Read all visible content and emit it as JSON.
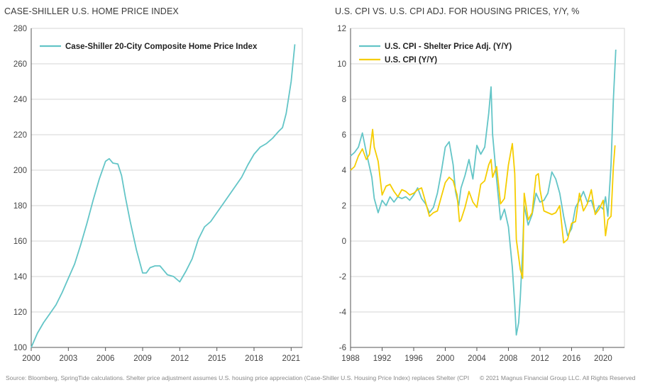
{
  "left_title": "CASE-SHILLER U.S. HOME PRICE INDEX",
  "right_title": "U.S. CPI VS. U.S. CPI ADJ. FOR HOUSING PRICES, Y/Y, %",
  "footer_source": "Source: Bloomberg, SpringTide calculations. Shelter price adjustment assumes U.S. housing price appreciation (Case-Shiller U.S. Housing Price Index) replaces Shelter (CPI",
  "footer_copyright": "© 2021 Magnus Financial Group LLC. All Rights Reserved",
  "colors": {
    "teal": "#63C5C7",
    "yellow": "#F5CD00",
    "grid": "#D4D4D4",
    "axis": "#555555"
  },
  "chart_data": [
    {
      "type": "line",
      "x_ticks": [
        2000,
        2003,
        2006,
        2009,
        2012,
        2015,
        2018,
        2021
      ],
      "y_ticks": [
        100,
        120,
        140,
        160,
        180,
        200,
        220,
        240,
        260,
        280
      ],
      "xlim": [
        2000,
        2021.9
      ],
      "ylim": [
        100,
        280
      ],
      "grid": "horizontal",
      "legend_position": "top-left",
      "series": [
        {
          "name": "Case-Shiller 20-City Composite Home Price Index",
          "color": "teal",
          "x": [
            2000,
            2000.5,
            2001,
            2001.5,
            2002,
            2002.5,
            2003,
            2003.5,
            2004,
            2004.5,
            2005,
            2005.5,
            2006,
            2006.3,
            2006.6,
            2007,
            2007.3,
            2007.6,
            2008,
            2008.5,
            2009,
            2009.3,
            2009.6,
            2010,
            2010.4,
            2011,
            2011.5,
            2012,
            2012.5,
            2013,
            2013.5,
            2014,
            2014.5,
            2015,
            2015.5,
            2016,
            2016.5,
            2017,
            2017.5,
            2018,
            2018.5,
            2019,
            2019.5,
            2020,
            2020.3,
            2020.6,
            2021,
            2021.3
          ],
          "values": [
            100,
            108,
            114,
            119,
            124,
            131,
            139,
            147,
            158,
            170,
            183,
            195,
            205,
            206.5,
            204,
            203.5,
            197,
            185,
            171,
            155,
            142,
            142,
            145,
            146,
            146,
            141,
            140,
            137,
            143,
            150,
            161,
            168,
            171,
            176,
            181,
            186,
            191,
            196,
            203,
            209,
            213,
            215,
            218,
            222,
            224,
            232,
            250,
            271
          ]
        }
      ]
    },
    {
      "type": "line",
      "x_ticks": [
        1988,
        1992,
        1996,
        2000,
        2004,
        2008,
        2012,
        2016,
        2020
      ],
      "y_ticks": [
        -6,
        -4,
        -2,
        0,
        2,
        4,
        6,
        8,
        10,
        12
      ],
      "xlim": [
        1988,
        2022.7
      ],
      "ylim": [
        -6,
        12
      ],
      "grid": "horizontal",
      "legend_position": "top-left",
      "series": [
        {
          "name": "U.S. CPI - Shelter Price Adj. (Y/Y)",
          "color": "teal",
          "x": [
            1988,
            1988.5,
            1989,
            1989.5,
            1990,
            1990.4,
            1990.7,
            1991,
            1991.5,
            1992,
            1992.5,
            1993,
            1993.5,
            1994,
            1994.5,
            1995,
            1995.5,
            1996,
            1996.5,
            1997,
            1997.5,
            1998,
            1998.5,
            1999,
            1999.5,
            2000,
            2000.5,
            2001,
            2001.3,
            2001.7,
            2002,
            2002.5,
            2003,
            2003.5,
            2004,
            2004.5,
            2005,
            2005.5,
            2005.8,
            2006,
            2006.5,
            2007,
            2007.5,
            2008,
            2008.5,
            2008.8,
            2009,
            2009.3,
            2009.5,
            2009.8,
            2010,
            2010.5,
            2011,
            2011.5,
            2012,
            2012.5,
            2013,
            2013.5,
            2014,
            2014.5,
            2015,
            2015.5,
            2016,
            2016.5,
            2017,
            2017.5,
            2018,
            2018.5,
            2019,
            2019.5,
            2020,
            2020.3,
            2020.6,
            2021,
            2021.3,
            2021.6
          ],
          "values": [
            4.8,
            5.0,
            5.3,
            6.1,
            5.0,
            4.2,
            3.6,
            2.4,
            1.6,
            2.3,
            2.0,
            2.5,
            2.2,
            2.5,
            2.4,
            2.5,
            2.3,
            2.6,
            3.0,
            2.4,
            2.1,
            1.6,
            1.9,
            2.7,
            3.9,
            5.3,
            5.6,
            4.3,
            2.8,
            2.0,
            3.0,
            3.7,
            4.6,
            3.5,
            5.4,
            4.9,
            5.3,
            7.2,
            8.7,
            6.0,
            3.5,
            1.2,
            1.8,
            0.8,
            -1.5,
            -3.6,
            -5.3,
            -4.6,
            -3.2,
            -0.5,
            2.0,
            0.9,
            1.5,
            2.7,
            2.2,
            2.3,
            2.7,
            3.9,
            3.5,
            2.7,
            1.4,
            0.3,
            0.7,
            1.9,
            2.3,
            2.8,
            2.2,
            2.3,
            1.6,
            2.0,
            1.8,
            2.5,
            1.4,
            4.3,
            8.0,
            10.8
          ]
        },
        {
          "name": "U.S. CPI (Y/Y)",
          "color": "yellow",
          "x": [
            1988,
            1988.5,
            1989,
            1989.5,
            1990,
            1990.4,
            1990.8,
            1991,
            1991.5,
            1992,
            1992.5,
            1993,
            1993.5,
            1994,
            1994.5,
            1995,
            1995.5,
            1996,
            1996.5,
            1997,
            1997.5,
            1998,
            1998.5,
            1999,
            1999.5,
            2000,
            2000.5,
            2001,
            2001.5,
            2001.8,
            2002,
            2002.5,
            2003,
            2003.5,
            2004,
            2004.5,
            2005,
            2005.5,
            2005.8,
            2006,
            2006.5,
            2007,
            2007.5,
            2008,
            2008.5,
            2008.8,
            2009,
            2009.5,
            2009.8,
            2010,
            2010.5,
            2011,
            2011.5,
            2011.8,
            2012,
            2012.5,
            2013,
            2013.5,
            2014,
            2014.5,
            2015,
            2015.5,
            2016,
            2016.5,
            2017,
            2017.5,
            2018,
            2018.5,
            2019,
            2019.5,
            2020,
            2020.3,
            2020.6,
            2021,
            2021.3,
            2021.5
          ],
          "values": [
            4.0,
            4.2,
            4.8,
            5.2,
            4.6,
            4.9,
            6.3,
            5.3,
            4.5,
            2.6,
            3.1,
            3.2,
            2.8,
            2.5,
            2.9,
            2.8,
            2.6,
            2.7,
            2.9,
            3.0,
            2.2,
            1.4,
            1.6,
            1.7,
            2.5,
            3.3,
            3.6,
            3.4,
            2.6,
            1.1,
            1.2,
            1.9,
            2.8,
            2.2,
            1.9,
            3.2,
            3.4,
            4.3,
            4.6,
            3.6,
            4.2,
            2.1,
            2.4,
            4.3,
            5.5,
            3.8,
            0.1,
            -1.6,
            -2.1,
            2.7,
            1.2,
            1.6,
            3.7,
            3.8,
            2.9,
            1.7,
            1.6,
            1.5,
            1.6,
            2.0,
            -0.1,
            0.1,
            1.0,
            1.1,
            2.7,
            1.7,
            2.1,
            2.9,
            1.5,
            1.8,
            2.3,
            0.3,
            1.2,
            1.4,
            4.2,
            5.4
          ]
        }
      ]
    }
  ]
}
